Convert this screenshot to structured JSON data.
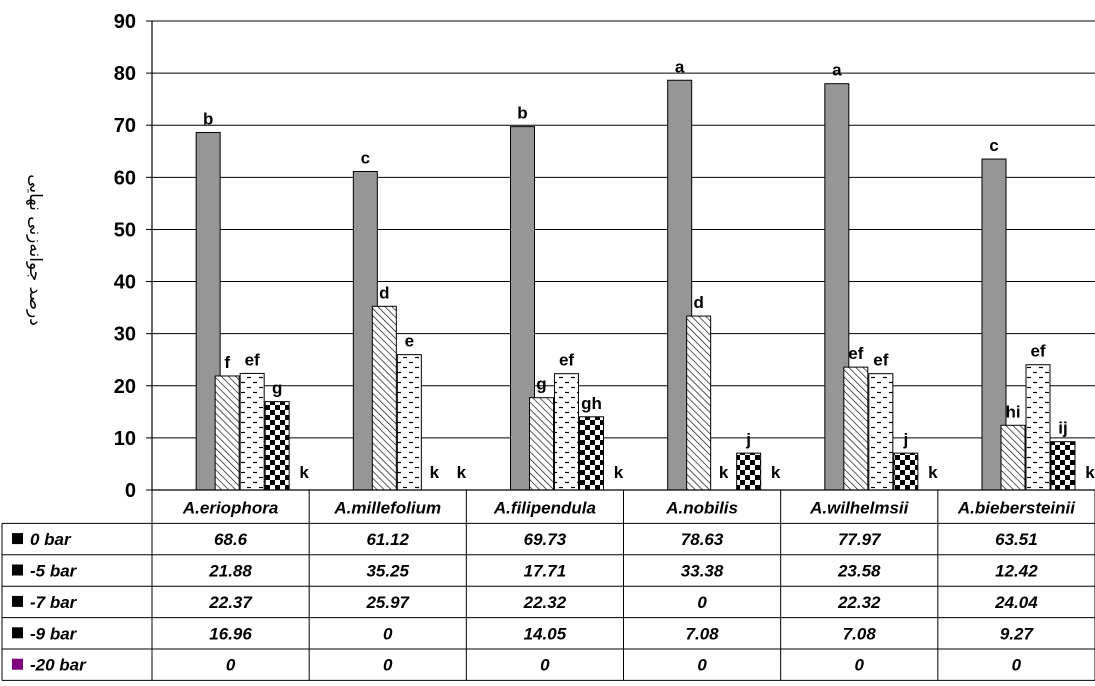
{
  "chart_data": {
    "type": "bar",
    "title": "",
    "xlabel": "",
    "ylabel": "درصد جوانه‌زنی نهایی",
    "ylim": [
      0,
      90
    ],
    "yticks": [
      0,
      10,
      20,
      30,
      40,
      50,
      60,
      70,
      80,
      90
    ],
    "grid": true,
    "legend": "data-table",
    "categories": [
      "A.eriophora",
      "A.millefolium",
      "A.filipendula",
      "A.nobilis",
      "A.wilhelmsii",
      "A.biebersteinii"
    ],
    "series": [
      {
        "name": "0 bar",
        "pattern": "solid-gray",
        "color": "#969696",
        "legend_color": "#000000",
        "values": [
          68.6,
          61.12,
          69.73,
          78.63,
          77.97,
          63.51
        ],
        "labels": [
          "68.6",
          "61.12",
          "69.73",
          "78.63",
          "77.97",
          "63.51"
        ],
        "letters": [
          "b",
          "c",
          "b",
          "a",
          "a",
          "c"
        ]
      },
      {
        "name": "-5 bar",
        "pattern": "diagonal-hatch",
        "color": "#000000",
        "legend_color": "#000000",
        "values": [
          21.88,
          35.25,
          17.71,
          33.38,
          23.58,
          12.42
        ],
        "labels": [
          "21.88",
          "35.25",
          "17.71",
          "33.38",
          "23.58",
          "12.42"
        ],
        "letters": [
          "f",
          "d",
          "g",
          "d",
          "ef",
          "hi"
        ]
      },
      {
        "name": "-7 bar",
        "pattern": "dashes",
        "color": "#000000",
        "legend_color": "#000000",
        "values": [
          22.37,
          25.97,
          22.32,
          0,
          22.32,
          24.04
        ],
        "labels": [
          "22.37",
          "25.97",
          "22.32",
          "0",
          "22.32",
          "24.04"
        ],
        "letters": [
          "ef",
          "e",
          "ef",
          "k",
          "ef",
          "ef"
        ]
      },
      {
        "name": "-9 bar",
        "pattern": "checker",
        "color": "#000000",
        "legend_color": "#000000",
        "values": [
          16.96,
          0,
          14.05,
          7.08,
          7.08,
          9.27
        ],
        "labels": [
          "16.96",
          "0",
          "14.05",
          "7.08",
          "7.08",
          "9.27"
        ],
        "letters": [
          "g",
          "k",
          "gh",
          "j",
          "j",
          "ij"
        ]
      },
      {
        "name": "-20 bar",
        "pattern": "none",
        "color": "#7f1f7f",
        "legend_color": "#800080",
        "values": [
          0,
          0,
          0,
          0,
          0,
          0
        ],
        "labels": [
          "0",
          "0",
          "0",
          "0",
          "0",
          "0"
        ],
        "letters": [
          "k",
          "k",
          "k",
          "k",
          "k",
          "k"
        ]
      }
    ]
  }
}
